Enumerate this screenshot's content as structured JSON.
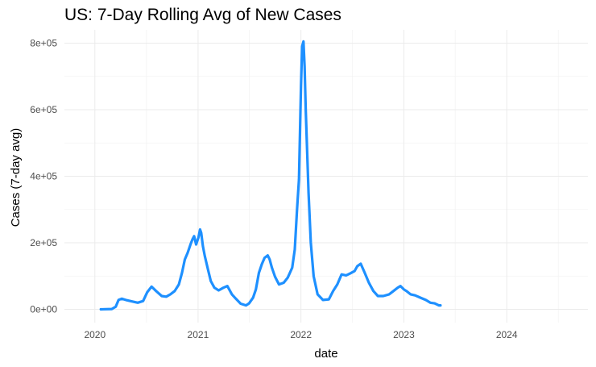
{
  "chart_data": {
    "type": "line",
    "title": "US: 7-Day Rolling Avg of New Cases",
    "xlabel": "date",
    "ylabel": "Cases (7-day avg)",
    "xlim": [
      "2019-09-15",
      "2024-10-15"
    ],
    "ylim": [
      -40000,
      840000
    ],
    "x_ticks": [
      "2020",
      "2021",
      "2022",
      "2023",
      "2024"
    ],
    "x_tick_dates": [
      "2020-01-01",
      "2021-01-01",
      "2022-01-01",
      "2023-01-01",
      "2024-01-01"
    ],
    "y_ticks": [
      0,
      200000,
      400000,
      600000,
      800000
    ],
    "y_tick_labels": [
      "0e+00",
      "2e+05",
      "4e+05",
      "6e+05",
      "8e+05"
    ],
    "grid": true,
    "legend": "none",
    "series": [
      {
        "color": "#1E90FF",
        "x": [
          "2020-01-22",
          "2020-03-01",
          "2020-03-15",
          "2020-03-25",
          "2020-04-05",
          "2020-04-20",
          "2020-05-10",
          "2020-06-01",
          "2020-06-20",
          "2020-07-05",
          "2020-07-20",
          "2020-08-05",
          "2020-08-25",
          "2020-09-10",
          "2020-09-25",
          "2020-10-10",
          "2020-10-25",
          "2020-11-05",
          "2020-11-15",
          "2020-11-25",
          "2020-12-05",
          "2020-12-12",
          "2020-12-18",
          "2020-12-25",
          "2021-01-02",
          "2021-01-08",
          "2021-01-12",
          "2021-01-18",
          "2021-01-25",
          "2021-02-05",
          "2021-02-15",
          "2021-02-28",
          "2021-03-15",
          "2021-04-01",
          "2021-04-15",
          "2021-05-01",
          "2021-05-15",
          "2021-06-01",
          "2021-06-20",
          "2021-07-01",
          "2021-07-15",
          "2021-07-25",
          "2021-08-05",
          "2021-08-15",
          "2021-08-25",
          "2021-09-05",
          "2021-09-12",
          "2021-09-20",
          "2021-10-01",
          "2021-10-15",
          "2021-11-01",
          "2021-11-15",
          "2021-12-01",
          "2021-12-10",
          "2021-12-18",
          "2021-12-25",
          "2022-01-01",
          "2022-01-05",
          "2022-01-10",
          "2022-01-14",
          "2022-01-18",
          "2022-01-22",
          "2022-01-28",
          "2022-02-05",
          "2022-02-15",
          "2022-03-01",
          "2022-03-20",
          "2022-04-10",
          "2022-04-25",
          "2022-05-10",
          "2022-05-25",
          "2022-06-10",
          "2022-06-25",
          "2022-07-10",
          "2022-07-20",
          "2022-08-01",
          "2022-08-15",
          "2022-08-30",
          "2022-09-15",
          "2022-10-01",
          "2022-10-20",
          "2022-11-10",
          "2022-11-25",
          "2022-12-10",
          "2022-12-20",
          "2023-01-01",
          "2023-01-10",
          "2023-01-25",
          "2023-02-10",
          "2023-03-01",
          "2023-03-20",
          "2023-04-05",
          "2023-04-20",
          "2023-05-05",
          "2023-05-11"
        ],
        "y": [
          0,
          1000,
          8000,
          28000,
          32000,
          28000,
          24000,
          20000,
          25000,
          52000,
          68000,
          55000,
          40000,
          38000,
          45000,
          55000,
          75000,
          110000,
          150000,
          170000,
          195000,
          210000,
          220000,
          195000,
          215000,
          240000,
          230000,
          190000,
          160000,
          120000,
          85000,
          65000,
          57000,
          65000,
          70000,
          45000,
          32000,
          17000,
          12000,
          18000,
          35000,
          60000,
          110000,
          135000,
          155000,
          162000,
          150000,
          125000,
          98000,
          75000,
          80000,
          95000,
          125000,
          180000,
          300000,
          390000,
          670000,
          790000,
          805000,
          730000,
          600000,
          500000,
          350000,
          200000,
          100000,
          45000,
          28000,
          30000,
          55000,
          75000,
          105000,
          102000,
          108000,
          115000,
          130000,
          137000,
          110000,
          80000,
          55000,
          40000,
          40000,
          45000,
          55000,
          65000,
          70000,
          60000,
          55000,
          45000,
          42000,
          35000,
          28000,
          20000,
          18000,
          12000,
          12000
        ]
      }
    ]
  }
}
